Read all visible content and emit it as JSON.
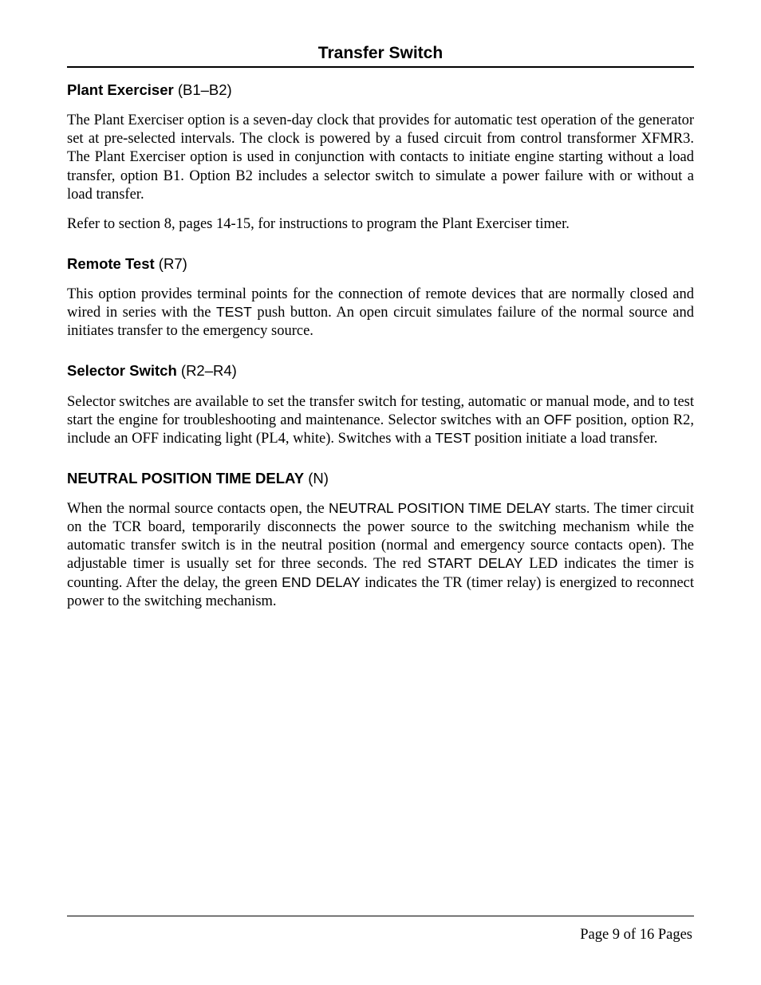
{
  "header": {
    "title": "Transfer Switch"
  },
  "sections": [
    {
      "heading_bold": "Plant Exerciser",
      "heading_suffix": " (B1–B2)",
      "paragraphs": [
        "The Plant Exerciser option is a seven-day clock that provides for automatic test operation of the generator set at pre-selected intervals.  The clock is powered by a fused circuit from control transformer XFMR3.  The Plant Exerciser option is used in conjunction with contacts to initiate engine starting without a load transfer, option B1.  Option B2 includes a selector switch to simulate a power failure with or without a load transfer.",
        "Refer to section 8, pages 14-15, for instructions to program the Plant Exerciser timer."
      ]
    },
    {
      "heading_bold": "Remote Test",
      "heading_suffix": " (R7)",
      "paragraphs": [
        "This option provides terminal points for the connection of remote devices that are normally closed and wired in series with the <span class=\"sans\">TEST</span> push button.  An open circuit simulates failure of the normal source and initiates transfer to the emergency source."
      ]
    },
    {
      "heading_bold": "Selector Switch",
      "heading_suffix": " (R2–R4)",
      "paragraphs": [
        "Selector switches are available to set the transfer switch for testing, automatic or manual mode, and to test start the engine for troubleshooting and maintenance.  Selector switches with an <span class=\"sans\">OFF</span> position, option R2, include an OFF indicating light (PL4, white).  Switches with a <span class=\"sans\">TEST</span> position initiate a load transfer."
      ]
    },
    {
      "heading_bold": "NEUTRAL POSITION TIME DELAY",
      "heading_suffix": " (N)",
      "paragraphs": [
        "When the normal source contacts open, the <span class=\"sans\">NEUTRAL POSITION TIME DELAY</span> starts.  The timer circuit on the TCR board, temporarily disconnects the power source to the switching mechanism while the automatic transfer switch is in the neutral position (normal and emergency source contacts open).  The adjustable timer is usually set for three seconds.  The red <span class=\"sans\">START DELAY</span> LED indicates the timer is counting.  After the delay, the green <span class=\"sans\">END DELAY</span> indicates the TR (timer relay) is energized to reconnect power to the switching mechanism."
      ]
    }
  ],
  "footer": {
    "page_label": "Page 9 of 16 Pages"
  }
}
